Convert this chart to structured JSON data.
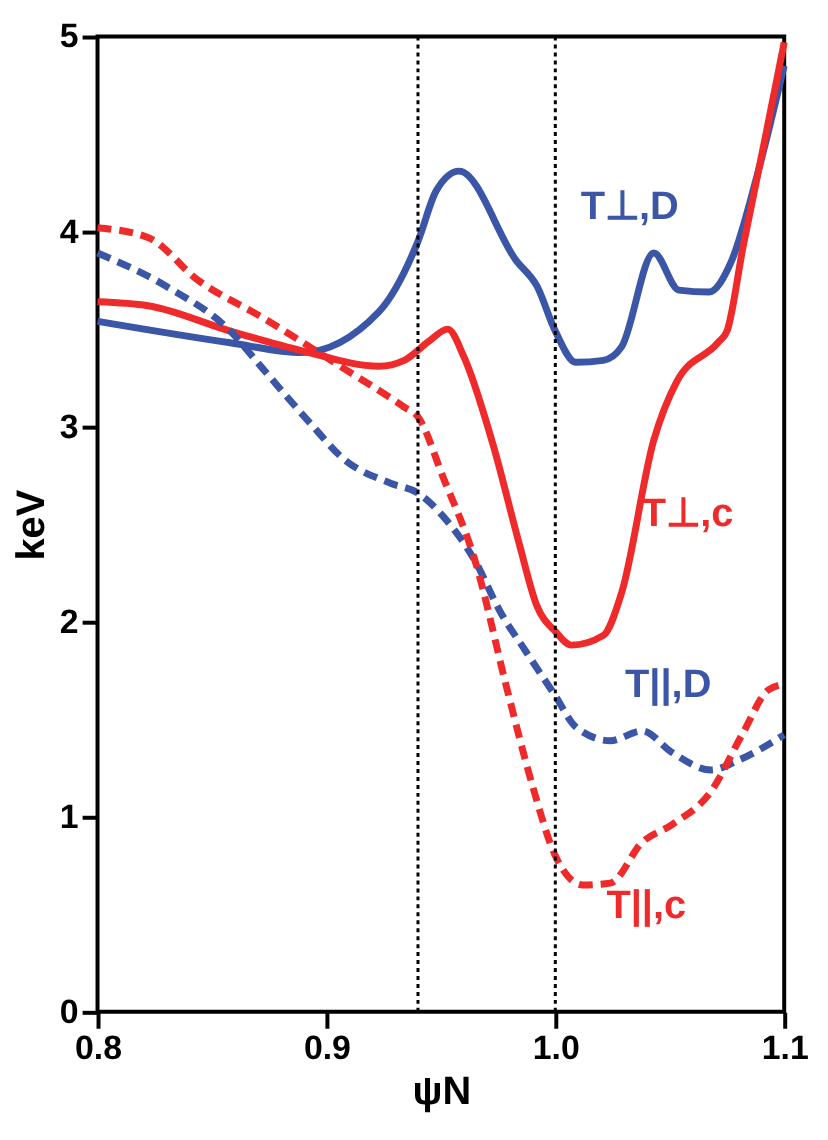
{
  "chart_data": {
    "type": "line",
    "xlabel": "ψN",
    "ylabel": "keV",
    "xlim": [
      0.8,
      1.1
    ],
    "ylim": [
      0,
      5
    ],
    "xticks": [
      0.8,
      0.9,
      {
        "value": 1.0,
        "label": "1.0"
      },
      1.1
    ],
    "yticks": [
      0,
      1,
      2,
      3,
      4,
      5
    ],
    "grid": false,
    "legend": false,
    "marker": "none",
    "ref_lines": [
      {
        "axis": "x",
        "value": 0.94,
        "color": "#000000",
        "line_style": "dotted"
      },
      {
        "axis": "x",
        "value": 1.0,
        "color": "#000000",
        "line_style": "dotted"
      }
    ],
    "series": [
      {
        "name": "T⊥,D",
        "color": "#3b56a6",
        "line_style": "solid",
        "x": [
          0.8,
          0.858,
          0.889,
          0.923,
          0.94,
          0.948,
          0.958,
          0.983,
          0.992,
          1.0,
          1.009,
          1.021,
          1.029,
          1.043,
          1.054,
          1.067,
          1.077,
          1.088,
          1.1
        ],
        "values": [
          3.54,
          3.43,
          3.38,
          3.59,
          3.95,
          4.21,
          4.31,
          3.85,
          3.72,
          3.49,
          3.33,
          3.34,
          3.41,
          3.89,
          3.7,
          3.69,
          3.85,
          4.28,
          4.85
        ]
      },
      {
        "name": "T⊥,c",
        "color": "#ee2a2a",
        "line_style": "solid",
        "x": [
          0.8,
          0.822,
          0.858,
          0.889,
          0.923,
          0.934,
          0.945,
          0.953,
          0.96,
          0.973,
          0.984,
          0.992,
          1.0,
          1.007,
          1.021,
          1.029,
          1.043,
          1.053,
          1.071,
          1.075,
          1.082,
          1.091,
          1.1
        ],
        "values": [
          3.64,
          3.62,
          3.49,
          3.39,
          3.31,
          3.34,
          3.44,
          3.5,
          3.36,
          2.9,
          2.41,
          2.08,
          1.95,
          1.88,
          1.93,
          2.15,
          2.93,
          3.23,
          3.43,
          3.49,
          3.92,
          4.44,
          4.97
        ]
      },
      {
        "name": "T||,D",
        "color": "#3b56a6",
        "line_style": "dashed",
        "x": [
          0.8,
          0.83,
          0.858,
          0.872,
          0.892,
          0.908,
          0.928,
          0.94,
          0.951,
          0.965,
          0.976,
          0.987,
          1.0,
          1.009,
          1.024,
          1.038,
          1.051,
          1.068,
          1.08,
          1.1
        ],
        "values": [
          3.89,
          3.72,
          3.49,
          3.3,
          3.03,
          2.83,
          2.71,
          2.66,
          2.54,
          2.31,
          2.05,
          1.85,
          1.62,
          1.46,
          1.39,
          1.44,
          1.33,
          1.24,
          1.29,
          1.42
        ]
      },
      {
        "name": "T||,c",
        "color": "#ee2a2a",
        "line_style": "dashed",
        "x": [
          0.8,
          0.822,
          0.844,
          0.872,
          0.906,
          0.934,
          0.94,
          0.951,
          0.965,
          0.979,
          0.99,
          1.0,
          1.012,
          1.024,
          1.038,
          1.051,
          1.068,
          1.082,
          1.093,
          1.1
        ],
        "values": [
          4.02,
          3.97,
          3.75,
          3.56,
          3.31,
          3.1,
          3.05,
          2.74,
          2.31,
          1.65,
          1.16,
          0.8,
          0.65,
          0.66,
          0.87,
          0.96,
          1.13,
          1.43,
          1.65,
          1.68
        ]
      }
    ]
  }
}
